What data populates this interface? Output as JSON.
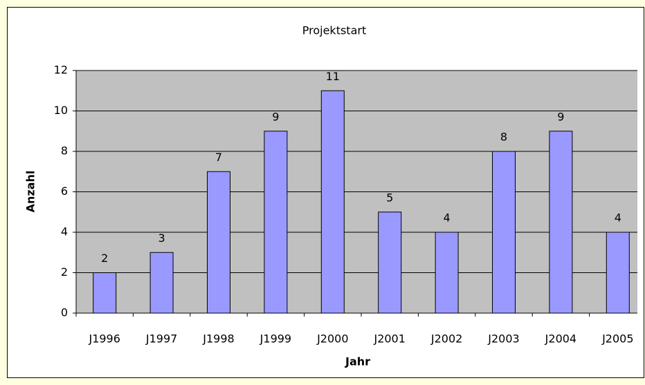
{
  "chart_data": {
    "type": "bar",
    "title": "Projektstart",
    "x_label": "Jahr",
    "y_label": "Anzahl",
    "categories": [
      "J1996",
      "J1997",
      "J1998",
      "J1999",
      "J2000",
      "J2001",
      "J2002",
      "J2003",
      "J2004",
      "J2005"
    ],
    "values": [
      2,
      3,
      7,
      9,
      11,
      5,
      4,
      8,
      9,
      4
    ],
    "color": "#9999ff",
    "ylim": [
      0,
      12
    ],
    "yticks": [
      0,
      2,
      4,
      6,
      8,
      10,
      12
    ],
    "grid": true,
    "data_labels": true
  }
}
